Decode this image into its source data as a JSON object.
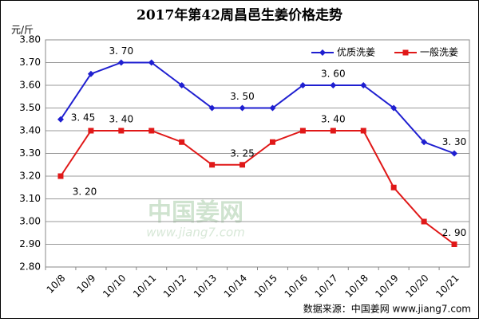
{
  "chart_data": {
    "type": "line",
    "title": "2017年第42周昌邑生姜价格走势",
    "ylabel": "元/斤",
    "source": "数据来源：中国姜网 www.jiang7.com",
    "watermark": "中国姜网",
    "watermark_url": "www.jiang7.com",
    "categories": [
      "10/8",
      "10/9",
      "10/10",
      "10/11",
      "10/12",
      "10/13",
      "10/14",
      "10/15",
      "10/16",
      "10/17",
      "10/18",
      "10/19",
      "10/20",
      "10/21"
    ],
    "series": [
      {
        "name": "优质洗姜",
        "color": "#1f1fd0",
        "marker": "diamond",
        "values": [
          3.45,
          3.65,
          3.7,
          3.7,
          3.6,
          3.5,
          3.5,
          3.5,
          3.6,
          3.6,
          3.6,
          3.5,
          3.35,
          3.3
        ],
        "value_labels": [
          "3. 45",
          null,
          "3. 70",
          null,
          null,
          null,
          "3. 50",
          null,
          null,
          "3. 60",
          null,
          null,
          null,
          "3. 30"
        ]
      },
      {
        "name": "一般洗姜",
        "color": "#e01818",
        "marker": "square",
        "values": [
          3.2,
          3.4,
          3.4,
          3.4,
          3.35,
          3.25,
          3.25,
          3.35,
          3.4,
          3.4,
          3.4,
          3.15,
          3.0,
          2.9
        ],
        "value_labels": [
          "3. 20",
          null,
          "3. 40",
          null,
          null,
          null,
          "3. 25",
          null,
          null,
          "3. 40",
          null,
          null,
          null,
          "2. 90"
        ]
      }
    ],
    "ylim": [
      2.8,
      3.8
    ],
    "yticks": [
      {
        "value": 2.8,
        "label": "2.80"
      },
      {
        "value": 2.9,
        "label": "2.90"
      },
      {
        "value": 3.0,
        "label": "3.00"
      },
      {
        "value": 3.1,
        "label": "3.10"
      },
      {
        "value": 3.2,
        "label": "3.20"
      },
      {
        "value": 3.3,
        "label": "3.30"
      },
      {
        "value": 3.4,
        "label": "3.40"
      },
      {
        "value": 3.5,
        "label": "3.50"
      },
      {
        "value": 3.6,
        "label": "3.60"
      },
      {
        "value": 3.7,
        "label": "3.70"
      },
      {
        "value": 3.8,
        "label": "3.80"
      }
    ],
    "grid": true,
    "legend": "upper right"
  }
}
